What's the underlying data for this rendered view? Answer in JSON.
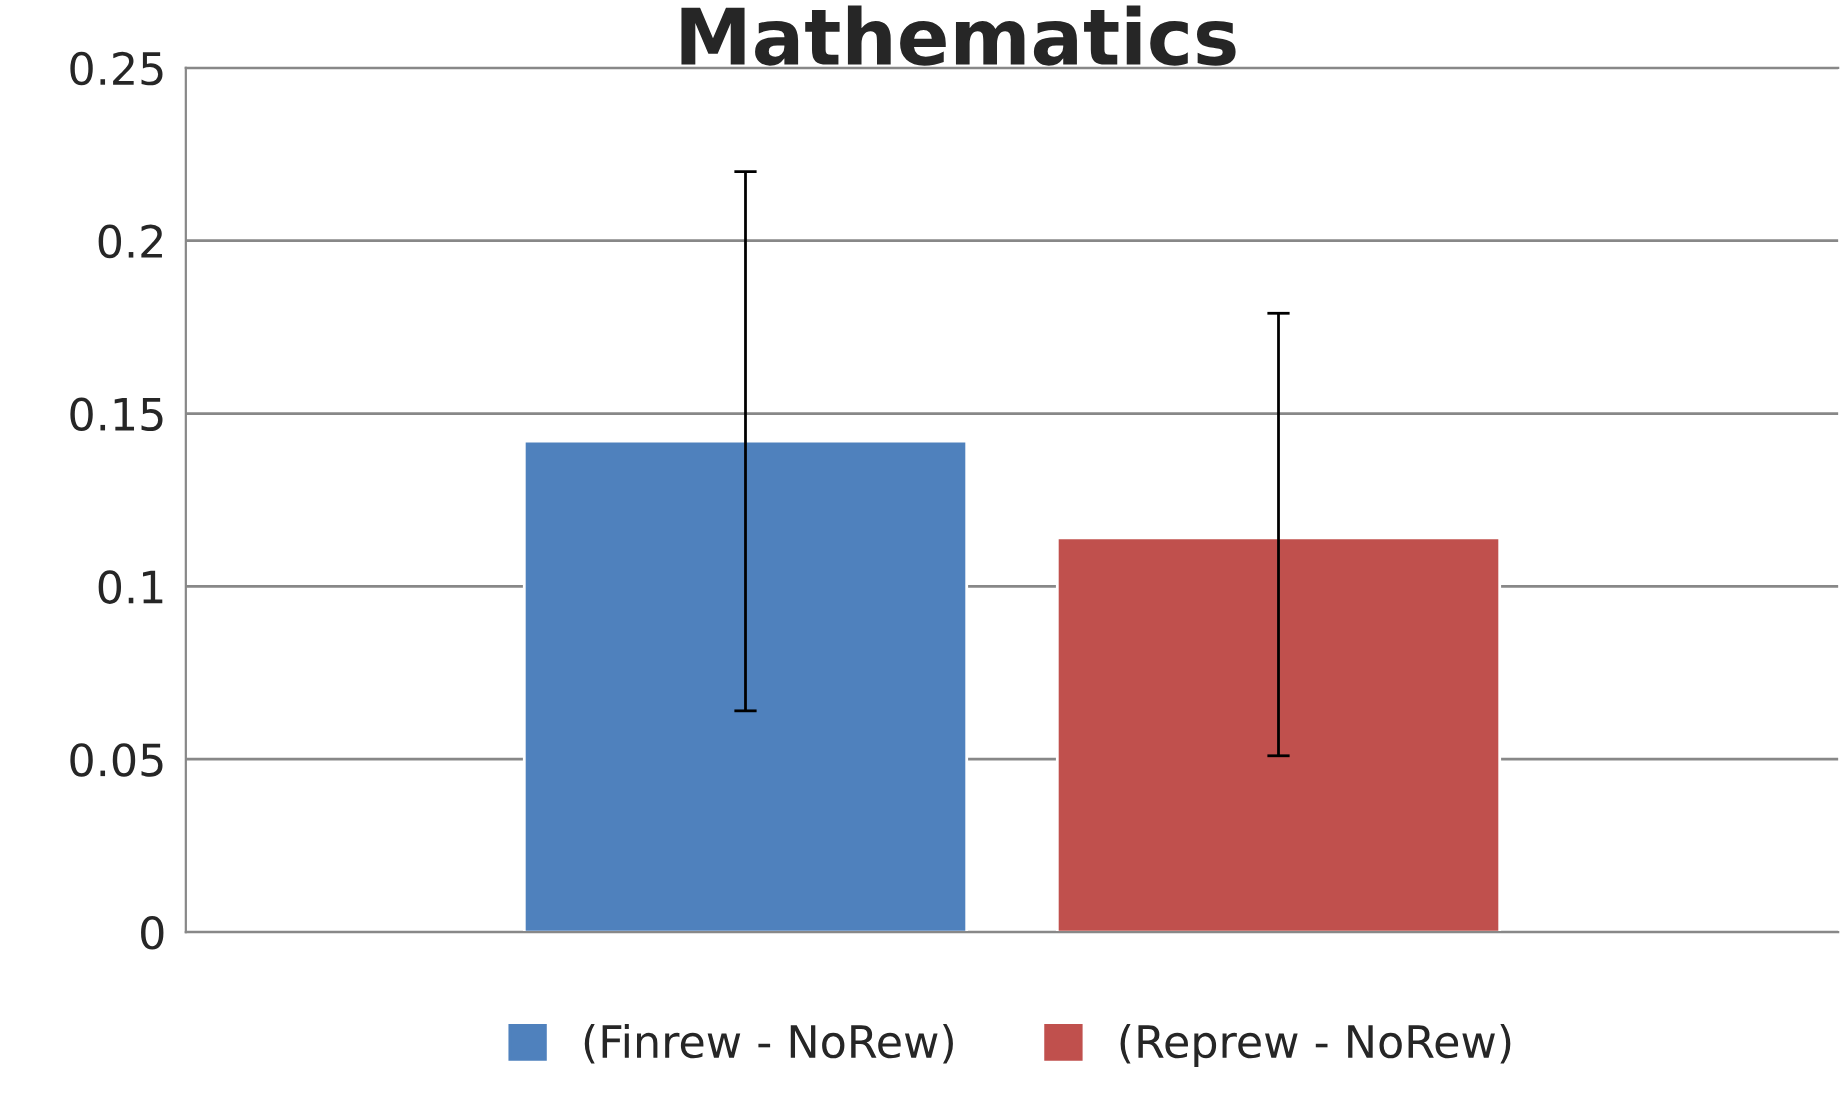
{
  "chart_data": {
    "type": "bar",
    "title": "Mathematics",
    "categories": [
      null
    ],
    "series": [
      {
        "name": "(Finrew - NoRew)",
        "color": "#4f81bd",
        "values": [
          0.142
        ],
        "errors": [
          [
            0.064,
            0.22
          ]
        ]
      },
      {
        "name": "(Reprew - NoRew)",
        "color": "#c0504d",
        "values": [
          0.114
        ],
        "errors": [
          [
            0.051,
            0.179
          ]
        ]
      }
    ],
    "ylim": [
      0,
      0.25
    ],
    "yticks": [
      {
        "value": 0,
        "label": "0"
      },
      0.05,
      {
        "value": 0.1,
        "label": "0.1"
      },
      0.15,
      {
        "value": 0.2,
        "label": "0.2"
      },
      0.25
    ],
    "grid": "y",
    "legend": "bottom"
  }
}
